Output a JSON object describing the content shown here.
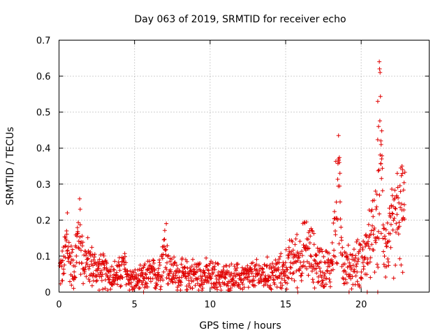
{
  "chart_data": {
    "type": "scatter",
    "title": "Day 063 of 2019, SRMTID for receiver echo",
    "xlabel": "GPS time / hours",
    "ylabel": "SRMTID / TECUs",
    "xlim": [
      0,
      24.5
    ],
    "ylim": [
      0,
      0.7
    ],
    "xticks": [
      0,
      5,
      10,
      15,
      20
    ],
    "xtick_labels": [
      "0",
      "5",
      "10",
      "15",
      "20"
    ],
    "yticks": [
      0,
      0.1,
      0.2,
      0.3,
      0.4,
      0.5,
      0.6,
      0.7
    ],
    "ytick_labels": [
      "0",
      "0.1",
      "0.2",
      "0.3",
      "0.4",
      "0.5",
      "0.6",
      "0.7"
    ],
    "grid": true,
    "marker": "plus",
    "color": "#e00000",
    "series": [
      {
        "name": "SRMTID",
        "profile": [
          [
            0.0,
            0.06
          ],
          [
            0.3,
            0.07
          ],
          [
            0.5,
            0.14
          ],
          [
            0.7,
            0.09
          ],
          [
            1.0,
            0.06
          ],
          [
            1.3,
            0.17
          ],
          [
            1.6,
            0.09
          ],
          [
            2.0,
            0.08
          ],
          [
            2.5,
            0.06
          ],
          [
            3.0,
            0.055
          ],
          [
            3.5,
            0.045
          ],
          [
            4.0,
            0.05
          ],
          [
            4.3,
            0.07
          ],
          [
            4.6,
            0.04
          ],
          [
            5.0,
            0.03
          ],
          [
            5.5,
            0.035
          ],
          [
            6.0,
            0.05
          ],
          [
            6.5,
            0.045
          ],
          [
            7.0,
            0.12
          ],
          [
            7.3,
            0.06
          ],
          [
            8.0,
            0.045
          ],
          [
            9.0,
            0.05
          ],
          [
            10.0,
            0.045
          ],
          [
            11.0,
            0.04
          ],
          [
            12.0,
            0.04
          ],
          [
            13.0,
            0.045
          ],
          [
            14.0,
            0.05
          ],
          [
            14.8,
            0.055
          ],
          [
            15.5,
            0.09
          ],
          [
            16.0,
            0.1
          ],
          [
            16.5,
            0.12
          ],
          [
            17.0,
            0.08
          ],
          [
            17.5,
            0.07
          ],
          [
            18.0,
            0.065
          ],
          [
            18.3,
            0.2
          ],
          [
            18.6,
            0.28
          ],
          [
            18.8,
            0.07
          ],
          [
            19.5,
            0.07
          ],
          [
            20.0,
            0.09
          ],
          [
            20.5,
            0.12
          ],
          [
            21.0,
            0.18
          ],
          [
            21.3,
            0.35
          ],
          [
            21.6,
            0.12
          ],
          [
            22.0,
            0.16
          ],
          [
            22.5,
            0.22
          ],
          [
            22.9,
            0.2
          ]
        ],
        "peaks": [
          [
            18.5,
            0.37
          ],
          [
            18.55,
            0.36
          ],
          [
            21.2,
            0.64
          ],
          [
            21.22,
            0.62
          ],
          [
            21.25,
            0.61
          ],
          [
            21.1,
            0.53
          ],
          [
            21.15,
            0.46
          ],
          [
            21.3,
            0.42
          ],
          [
            21.32,
            0.41
          ],
          [
            21.35,
            0.37
          ],
          [
            22.7,
            0.35
          ],
          [
            22.75,
            0.34
          ],
          [
            1.4,
            0.23
          ],
          [
            0.55,
            0.22
          ],
          [
            7.1,
            0.19
          ]
        ],
        "zero_points": [
          5.6,
          15.8,
          19.2,
          20.4,
          21.1
        ]
      }
    ]
  }
}
